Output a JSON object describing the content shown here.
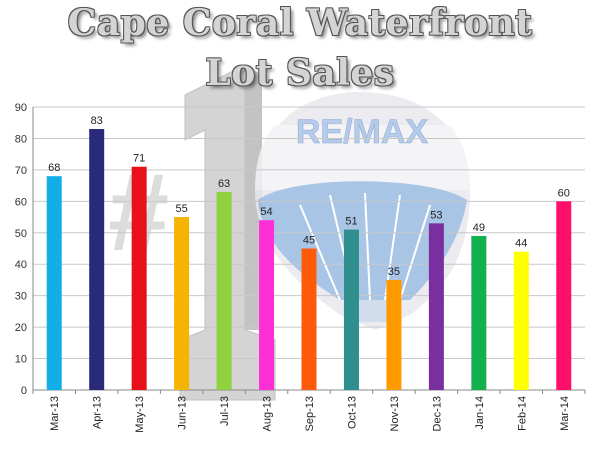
{
  "chart_data": {
    "type": "bar",
    "title_lines": [
      "Cape Coral Waterfront",
      "Lot Sales"
    ],
    "logo_text": "RE/MAX",
    "categories": [
      "Mar-13",
      "Apr-13",
      "May-13",
      "Jun-13",
      "Jul-13",
      "Aug-13",
      "Sep-13",
      "Oct-13",
      "Nov-13",
      "Dec-13",
      "Jan-14",
      "Feb-14",
      "Mar-14"
    ],
    "values": [
      68,
      83,
      71,
      55,
      63,
      54,
      45,
      51,
      35,
      53,
      49,
      44,
      60
    ],
    "colors": [
      "#12aee8",
      "#2a2a7a",
      "#e8101a",
      "#f5b400",
      "#8fd13f",
      "#ff2fd6",
      "#ff5a0a",
      "#2f8e8e",
      "#ff9900",
      "#7a2fa0",
      "#12b04e",
      "#ffff00",
      "#ff0f6a"
    ],
    "xlabel": "",
    "ylabel": "",
    "ylim": [
      0,
      90
    ],
    "yticks": [
      0,
      10,
      20,
      30,
      40,
      50,
      60,
      70,
      80,
      90
    ],
    "grid": true,
    "legend": "none"
  }
}
